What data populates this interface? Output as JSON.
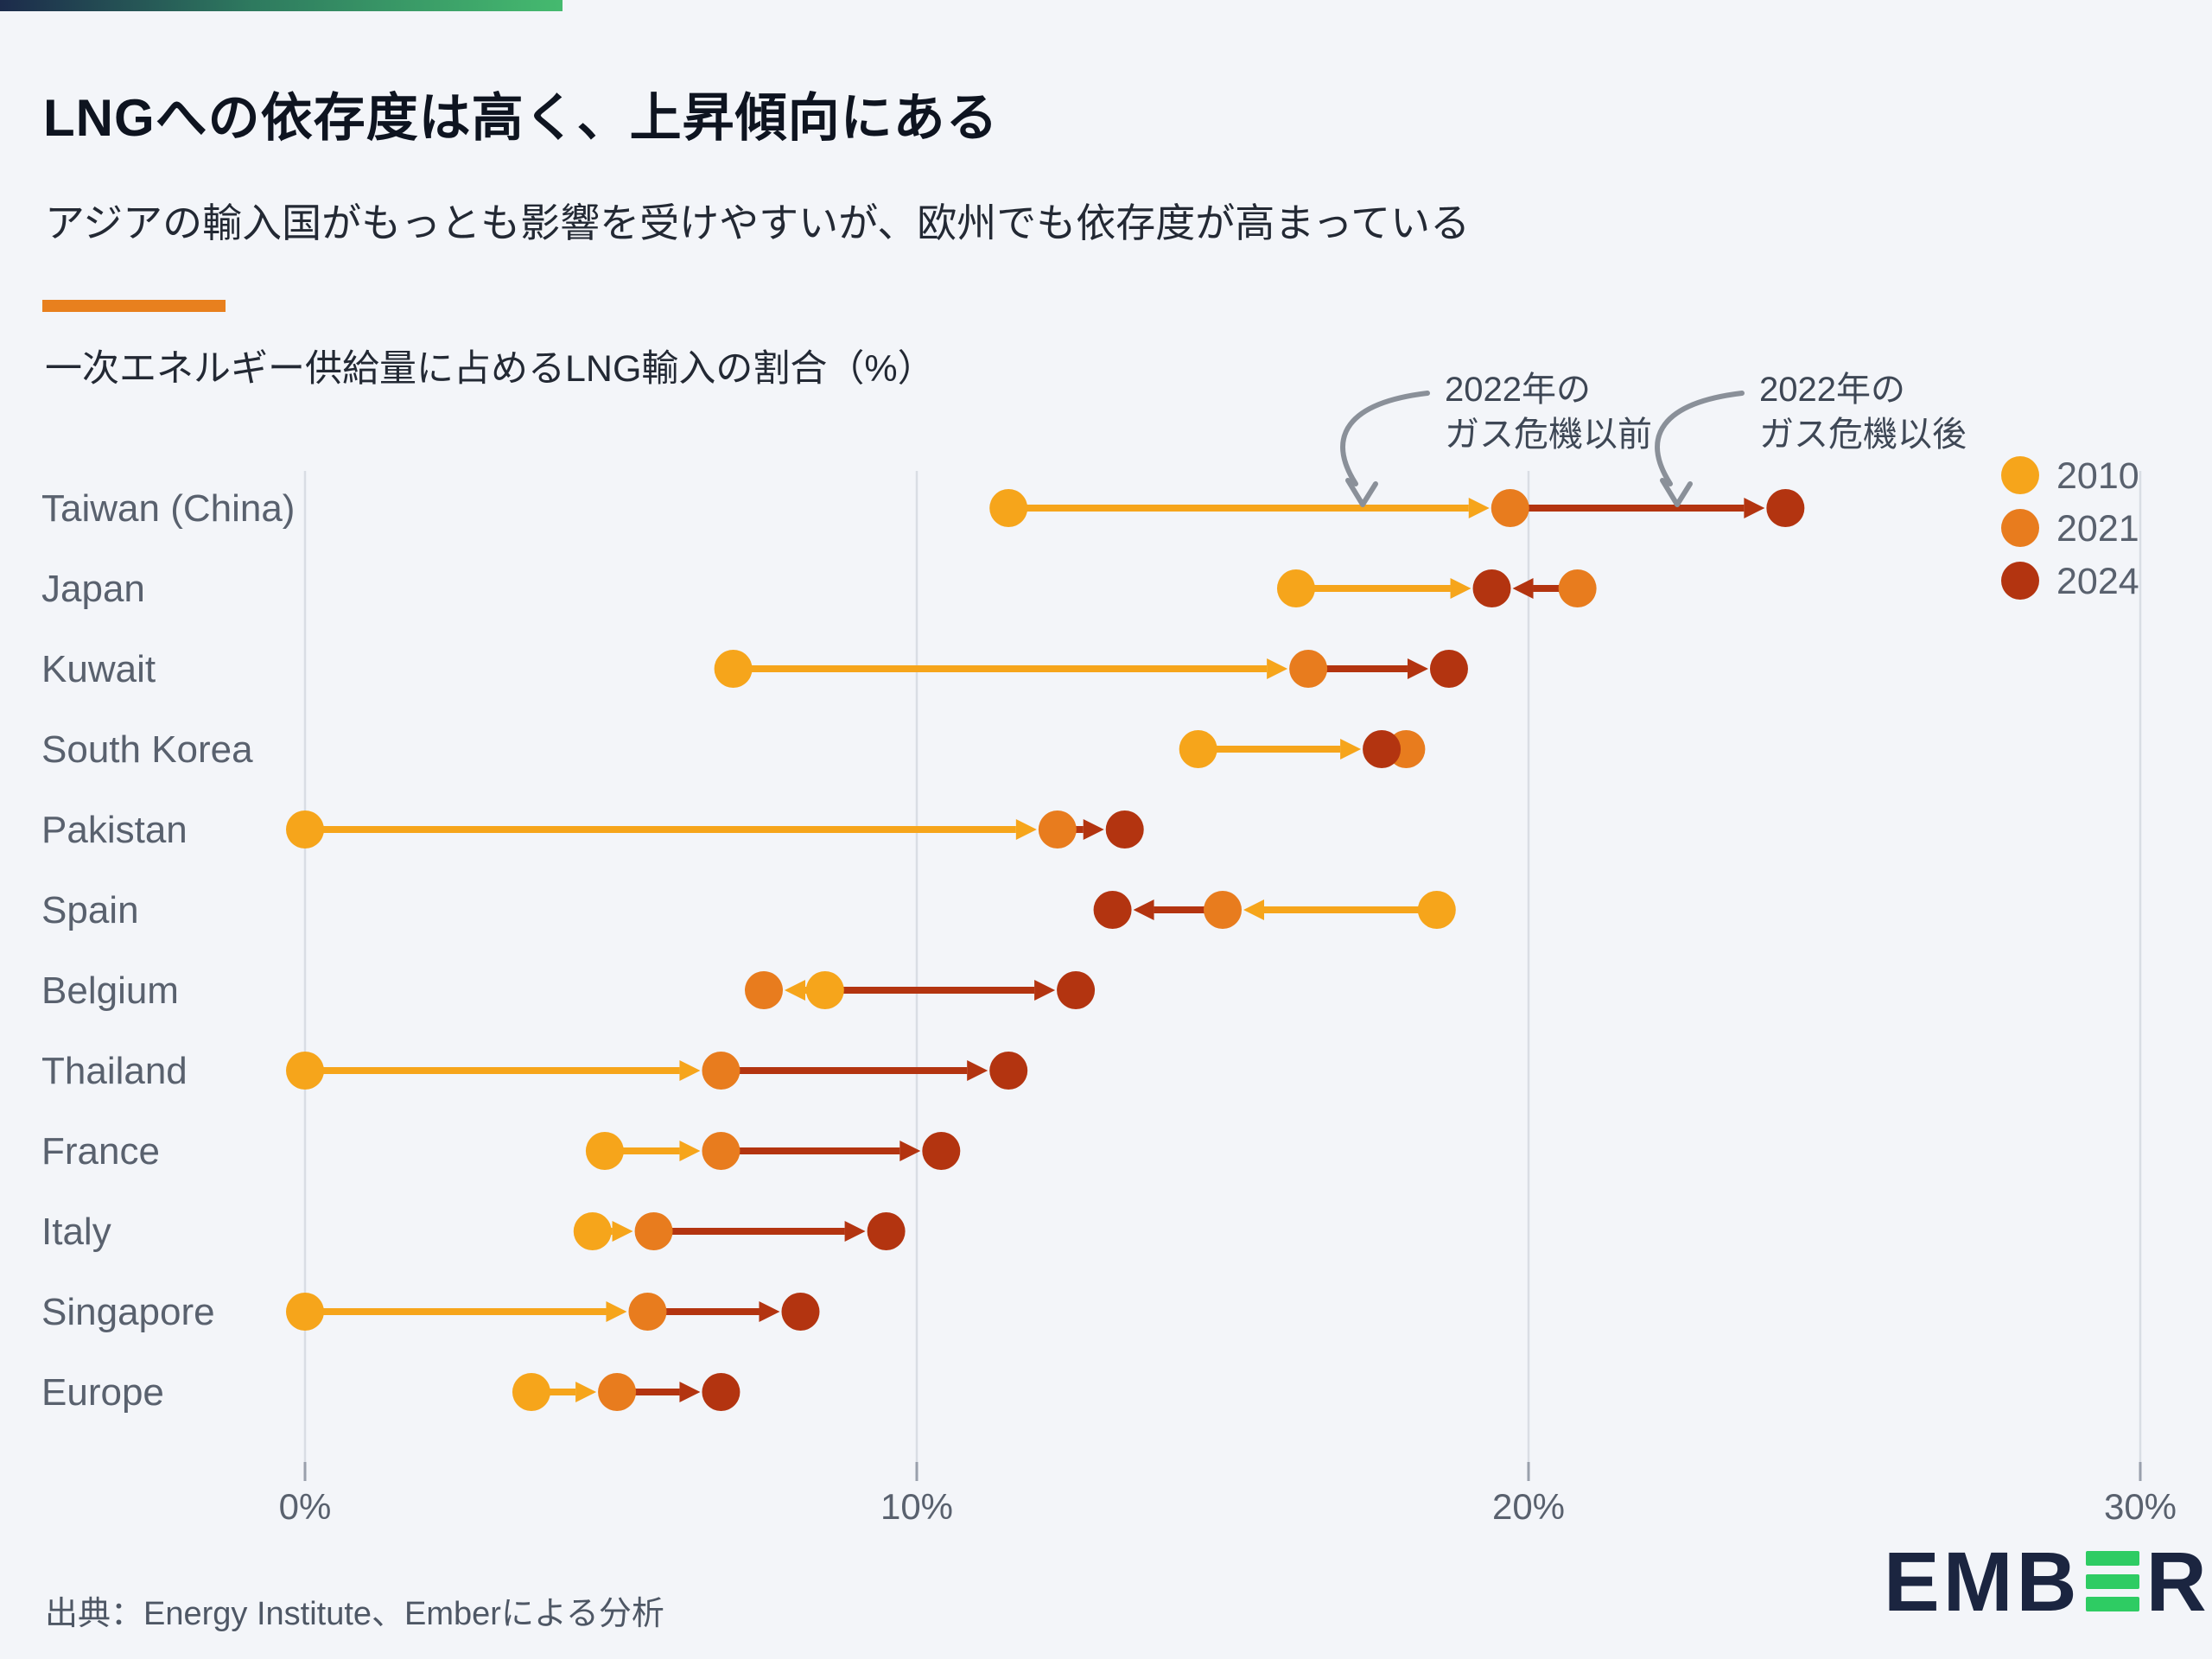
{
  "page": {
    "title": "LNGへの依存度は高く、上昇傾向にある",
    "subtitle": "アジアの輸入国がもっとも影響を受けやすいが、欧州でも依存度が高まっている",
    "source": "出典：Energy Institute、Emberによる分析",
    "logo_prefix": "EMB",
    "logo_suffix": "R",
    "accent_color": "#E8801E",
    "topbar_gradient": [
      "#1C2B4B",
      "#45BA6F"
    ],
    "logo_navy": "#1B2540",
    "logo_green": "#2ECC63"
  },
  "chart_data": {
    "type": "scatter",
    "subtype": "dumbbell-arrow-dot-plot",
    "title": "一次エネルギー供給量に占めるLNG輸入の割合（%）",
    "xlabel": "",
    "ylabel": "",
    "xlim": [
      0,
      30
    ],
    "grid": true,
    "x_ticks": [
      {
        "value": 0,
        "label": "0%"
      },
      {
        "value": 10,
        "label": "10%"
      },
      {
        "value": 20,
        "label": "20%"
      },
      {
        "value": 30,
        "label": "30%"
      }
    ],
    "categories": [
      "Taiwan (China)",
      "Japan",
      "Kuwait",
      "South Korea",
      "Pakistan",
      "Spain",
      "Belgium",
      "Thailand",
      "France",
      "Italy",
      "Singapore",
      "Europe"
    ],
    "series": [
      {
        "name": "2010",
        "color": "#F6A51B",
        "values": [
          11.5,
          16.2,
          7.0,
          14.6,
          0.0,
          18.5,
          8.5,
          0.0,
          4.9,
          4.7,
          0.0,
          3.7
        ]
      },
      {
        "name": "2021",
        "color": "#E87C1E",
        "values": [
          19.7,
          20.8,
          16.4,
          18.0,
          12.3,
          15.0,
          7.5,
          6.8,
          6.8,
          5.7,
          5.6,
          5.1
        ]
      },
      {
        "name": "2024",
        "color": "#B33410",
        "values": [
          24.2,
          19.4,
          18.7,
          17.6,
          13.4,
          13.2,
          12.6,
          11.5,
          10.4,
          9.5,
          8.1,
          6.8
        ]
      }
    ],
    "arrows": [
      [
        [
          "2010",
          "2021",
          "2010"
        ],
        [
          "2021",
          "2024",
          "2024"
        ]
      ],
      [
        [
          "2010",
          "2024",
          "2010"
        ],
        [
          "2021",
          "2024",
          "2024"
        ]
      ],
      [
        [
          "2010",
          "2021",
          "2010"
        ],
        [
          "2021",
          "2024",
          "2024"
        ]
      ],
      [
        [
          "2010",
          "2024",
          "2010"
        ]
      ],
      [
        [
          "2010",
          "2021",
          "2010"
        ],
        [
          "2021",
          "2024",
          "2024"
        ]
      ],
      [
        [
          "2010",
          "2021",
          "2010"
        ],
        [
          "2021",
          "2024",
          "2024"
        ]
      ],
      [
        [
          "2010",
          "2021",
          "2010"
        ],
        [
          "2010",
          "2024",
          "2024"
        ]
      ],
      [
        [
          "2010",
          "2021",
          "2010"
        ],
        [
          "2021",
          "2024",
          "2024"
        ]
      ],
      [
        [
          "2010",
          "2021",
          "2010"
        ],
        [
          "2021",
          "2024",
          "2024"
        ]
      ],
      [
        [
          "2010",
          "2021",
          "2010"
        ],
        [
          "2021",
          "2024",
          "2024"
        ]
      ],
      [
        [
          "2010",
          "2021",
          "2010"
        ],
        [
          "2021",
          "2024",
          "2024"
        ]
      ],
      [
        [
          "2010",
          "2021",
          "2010"
        ],
        [
          "2021",
          "2024",
          "2024"
        ]
      ]
    ],
    "legend": {
      "position": "top-right",
      "entries": [
        {
          "label": "2010",
          "color": "#F6A51B"
        },
        {
          "label": "2021",
          "color": "#E87C1E"
        },
        {
          "label": "2024",
          "color": "#B33410"
        }
      ]
    },
    "annotations": [
      {
        "lines": [
          "2022年の",
          "ガス危機以前"
        ],
        "x": 1672,
        "y": 464
      },
      {
        "lines": [
          "2022年の",
          "ガス危機以後"
        ],
        "x": 2036,
        "y": 464
      }
    ],
    "colors": {
      "gridline": "#D9DDE4",
      "tick": "#99A0AC",
      "axis_label": "#59616E",
      "category_label": "#59616E",
      "annotation_text": "#3E4755",
      "annotation_arrow": "#8A9099"
    }
  }
}
